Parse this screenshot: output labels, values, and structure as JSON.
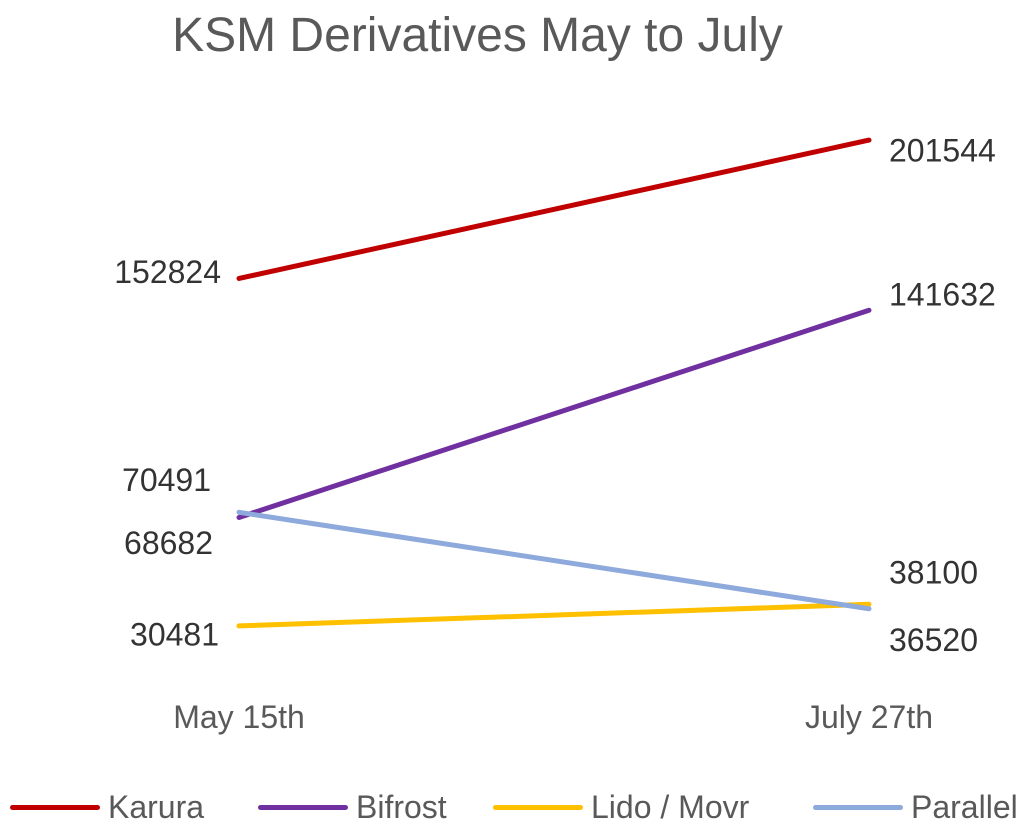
{
  "chart_data": {
    "type": "line",
    "title": "KSM Derivatives May to July",
    "categories": [
      "May 15th",
      "July 27th"
    ],
    "series": [
      {
        "name": "Karura",
        "color": "#C00000",
        "values": [
          152824,
          201544
        ]
      },
      {
        "name": "Bifrost",
        "color": "#7030A0",
        "values": [
          68682,
          141632
        ]
      },
      {
        "name": "Lido / Movr",
        "color": "#FFC000",
        "values": [
          30481,
          38100
        ]
      },
      {
        "name": "Parallel",
        "color": "#8EA9DB",
        "values": [
          70491,
          36520
        ]
      }
    ],
    "ylim": [
      0,
      250000
    ],
    "grid": false,
    "legend": "bottom",
    "data_labels": true
  }
}
